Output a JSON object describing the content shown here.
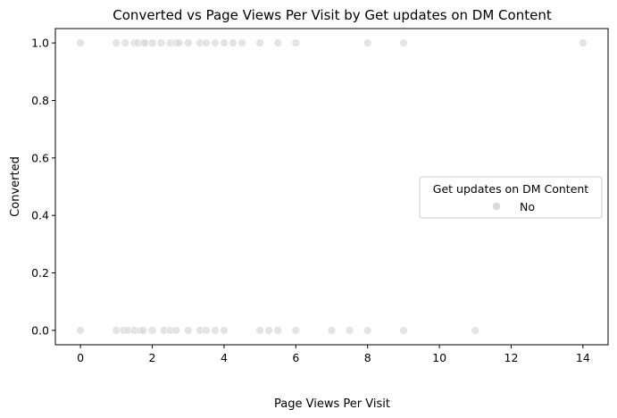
{
  "chart_data": {
    "type": "scatter",
    "title": "Converted vs Page Views Per Visit by Get updates on DM Content",
    "xlabel": "Page Views Per Visit",
    "ylabel": "Converted",
    "xlim": [
      -0.7,
      14.7
    ],
    "ylim": [
      -0.05,
      1.05
    ],
    "x_ticks": [
      0,
      2,
      4,
      6,
      8,
      10,
      12,
      14
    ],
    "y_ticks": [
      0.0,
      0.2,
      0.4,
      0.6,
      0.8,
      1.0
    ],
    "x_tick_labels": [
      "0",
      "2",
      "4",
      "6",
      "8",
      "10",
      "12",
      "14"
    ],
    "y_tick_labels": [
      "0.0",
      "0.2",
      "0.4",
      "0.6",
      "0.8",
      "1.0"
    ],
    "grid": false,
    "legend": {
      "title": "Get updates on DM Content",
      "placement": "center-right",
      "entries": [
        {
          "label": "No",
          "color": "#d9d9d9"
        }
      ]
    },
    "series": [
      {
        "name": "No",
        "color": "#d9d9d9",
        "points": [
          [
            0,
            1
          ],
          [
            1,
            1
          ],
          [
            1.25,
            1
          ],
          [
            1.5,
            1
          ],
          [
            1.6,
            1
          ],
          [
            1.75,
            1
          ],
          [
            1.8,
            1
          ],
          [
            2,
            1
          ],
          [
            2.25,
            1
          ],
          [
            2.5,
            1
          ],
          [
            2.67,
            1
          ],
          [
            2.75,
            1
          ],
          [
            3,
            1
          ],
          [
            3.33,
            1
          ],
          [
            3.5,
            1
          ],
          [
            3.75,
            1
          ],
          [
            4,
            1
          ],
          [
            4.25,
            1
          ],
          [
            4.5,
            1
          ],
          [
            5,
            1
          ],
          [
            5.5,
            1
          ],
          [
            6,
            1
          ],
          [
            8,
            1
          ],
          [
            9,
            1
          ],
          [
            14,
            1
          ],
          [
            0,
            0
          ],
          [
            1,
            0
          ],
          [
            1.2,
            0
          ],
          [
            1.33,
            0
          ],
          [
            1.5,
            0
          ],
          [
            1.67,
            0
          ],
          [
            1.75,
            0
          ],
          [
            2,
            0
          ],
          [
            2.33,
            0
          ],
          [
            2.5,
            0
          ],
          [
            2.67,
            0
          ],
          [
            3,
            0
          ],
          [
            3.33,
            0
          ],
          [
            3.5,
            0
          ],
          [
            3.75,
            0
          ],
          [
            4,
            0
          ],
          [
            5,
            0
          ],
          [
            5.25,
            0
          ],
          [
            5.5,
            0
          ],
          [
            6,
            0
          ],
          [
            7,
            0
          ],
          [
            7.5,
            0
          ],
          [
            8,
            0
          ],
          [
            9,
            0
          ],
          [
            11,
            0
          ]
        ]
      }
    ]
  }
}
